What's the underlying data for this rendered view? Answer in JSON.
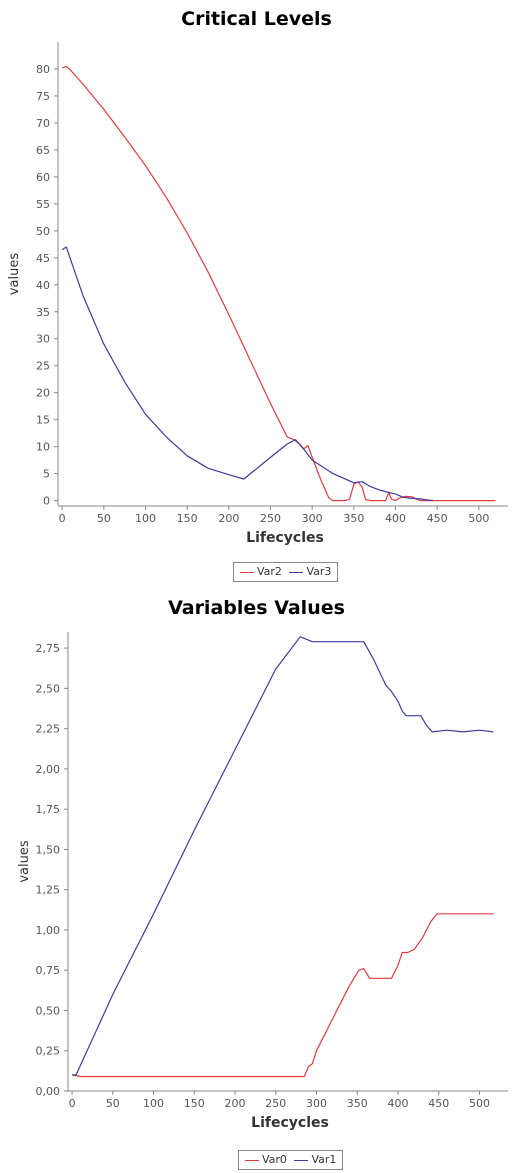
{
  "chart_data": [
    {
      "type": "line",
      "title": "Critical Levels",
      "xlabel": "Lifecycles",
      "ylabel": "values",
      "xlim": [
        -5,
        535
      ],
      "ylim": [
        -1,
        85
      ],
      "x_ticks": [
        0,
        50,
        100,
        150,
        200,
        250,
        300,
        350,
        400,
        450,
        500
      ],
      "y_ticks": [
        0,
        5,
        10,
        15,
        20,
        25,
        30,
        35,
        40,
        45,
        50,
        55,
        60,
        65,
        70,
        75,
        80
      ],
      "x_tick_labels": [
        "0",
        "50",
        "100",
        "150",
        "200",
        "250",
        "300",
        "350",
        "400",
        "450",
        "500"
      ],
      "y_tick_labels": [
        "0",
        "5",
        "10",
        "15",
        "20",
        "25",
        "30",
        "35",
        "40",
        "45",
        "50",
        "55",
        "60",
        "65",
        "70",
        "75",
        "80"
      ],
      "grid": false,
      "legend": "bottom",
      "series": [
        {
          "name": "Var2",
          "color": "#e03c3c",
          "points": [
            [
              0,
              80.2
            ],
            [
              5,
              80.5
            ],
            [
              10,
              79.8
            ],
            [
              25,
              77.2
            ],
            [
              50,
              72.5
            ],
            [
              75,
              67.4
            ],
            [
              100,
              62.1
            ],
            [
              125,
              56.2
            ],
            [
              150,
              49.6
            ],
            [
              175,
              42.4
            ],
            [
              200,
              34.5
            ],
            [
              225,
              26.2
            ],
            [
              250,
              18.0
            ],
            [
              270,
              11.8
            ],
            [
              278,
              11.3
            ],
            [
              285,
              10.5
            ],
            [
              290,
              9.6
            ],
            [
              295,
              10.2
            ],
            [
              300,
              8.0
            ],
            [
              310,
              4.0
            ],
            [
              320,
              0.5
            ],
            [
              325,
              0
            ],
            [
              340,
              0
            ],
            [
              345,
              0.3
            ],
            [
              350,
              3.0
            ],
            [
              355,
              3.5
            ],
            [
              360,
              2.5
            ],
            [
              364,
              0.2
            ],
            [
              370,
              0
            ],
            [
              388,
              0
            ],
            [
              392,
              1.5
            ],
            [
              395,
              0.3
            ],
            [
              400,
              0
            ],
            [
              405,
              0.5
            ],
            [
              412,
              0.8
            ],
            [
              420,
              0.7
            ],
            [
              425,
              0.3
            ],
            [
              430,
              0
            ],
            [
              520,
              0
            ]
          ]
        },
        {
          "name": "Var3",
          "color": "#3c3ca0",
          "points": [
            [
              0,
              46.5
            ],
            [
              5,
              47.0
            ],
            [
              25,
              38.0
            ],
            [
              50,
              29.0
            ],
            [
              75,
              22.0
            ],
            [
              100,
              16.0
            ],
            [
              125,
              11.8
            ],
            [
              150,
              8.3
            ],
            [
              175,
              6.0
            ],
            [
              200,
              4.8
            ],
            [
              218,
              4.0
            ],
            [
              230,
              5.5
            ],
            [
              250,
              8.0
            ],
            [
              270,
              10.5
            ],
            [
              280,
              11.3
            ],
            [
              290,
              9.5
            ],
            [
              300,
              7.5
            ],
            [
              325,
              5.0
            ],
            [
              350,
              3.3
            ],
            [
              360,
              3.5
            ],
            [
              370,
              2.6
            ],
            [
              380,
              2.0
            ],
            [
              390,
              1.6
            ],
            [
              400,
              1.2
            ],
            [
              410,
              0.6
            ],
            [
              420,
              0.4
            ],
            [
              430,
              0.3
            ],
            [
              440,
              0.1
            ],
            [
              445,
              0
            ]
          ]
        }
      ]
    },
    {
      "type": "line",
      "title": "Variables Values",
      "xlabel": "Lifecycles",
      "ylabel": "values",
      "xlim": [
        -5,
        535
      ],
      "ylim": [
        0,
        2.85
      ],
      "x_ticks": [
        0,
        50,
        100,
        150,
        200,
        250,
        300,
        350,
        400,
        450,
        500
      ],
      "y_ticks": [
        0,
        0.25,
        0.5,
        0.75,
        1.0,
        1.25,
        1.5,
        1.75,
        2.0,
        2.25,
        2.5,
        2.75
      ],
      "x_tick_labels": [
        "0",
        "50",
        "100",
        "150",
        "200",
        "250",
        "300",
        "350",
        "400",
        "450",
        "500"
      ],
      "y_tick_labels": [
        "0,00",
        "0,25",
        "0,50",
        "0,75",
        "1,00",
        "1,25",
        "1,50",
        "1,75",
        "2,00",
        "2,25",
        "2,50",
        "2,75"
      ],
      "grid": false,
      "legend": "bottom",
      "series": [
        {
          "name": "Var0",
          "color": "#e03c3c",
          "points": [
            [
              0,
              0.1
            ],
            [
              10,
              0.09
            ],
            [
              100,
              0.09
            ],
            [
              200,
              0.09
            ],
            [
              285,
              0.09
            ],
            [
              290,
              0.15
            ],
            [
              295,
              0.17
            ],
            [
              300,
              0.25
            ],
            [
              320,
              0.45
            ],
            [
              340,
              0.65
            ],
            [
              352,
              0.75
            ],
            [
              358,
              0.76
            ],
            [
              365,
              0.7
            ],
            [
              380,
              0.7
            ],
            [
              392,
              0.7
            ],
            [
              400,
              0.78
            ],
            [
              405,
              0.86
            ],
            [
              412,
              0.86
            ],
            [
              420,
              0.88
            ],
            [
              430,
              0.95
            ],
            [
              440,
              1.05
            ],
            [
              448,
              1.1
            ],
            [
              460,
              1.1
            ],
            [
              480,
              1.1
            ],
            [
              500,
              1.1
            ],
            [
              517,
              1.1
            ]
          ]
        },
        {
          "name": "Var1",
          "color": "#3c3ca0",
          "points": [
            [
              0,
              0.1
            ],
            [
              5,
              0.1
            ],
            [
              50,
              0.6
            ],
            [
              100,
              1.1
            ],
            [
              150,
              1.62
            ],
            [
              200,
              2.12
            ],
            [
              250,
              2.62
            ],
            [
              280,
              2.82
            ],
            [
              285,
              2.81
            ],
            [
              295,
              2.79
            ],
            [
              320,
              2.79
            ],
            [
              340,
              2.79
            ],
            [
              358,
              2.79
            ],
            [
              370,
              2.68
            ],
            [
              385,
              2.52
            ],
            [
              392,
              2.48
            ],
            [
              400,
              2.42
            ],
            [
              405,
              2.36
            ],
            [
              410,
              2.33
            ],
            [
              420,
              2.33
            ],
            [
              428,
              2.33
            ],
            [
              435,
              2.27
            ],
            [
              442,
              2.23
            ],
            [
              460,
              2.24
            ],
            [
              480,
              2.23
            ],
            [
              500,
              2.24
            ],
            [
              517,
              2.23
            ]
          ]
        }
      ]
    }
  ]
}
